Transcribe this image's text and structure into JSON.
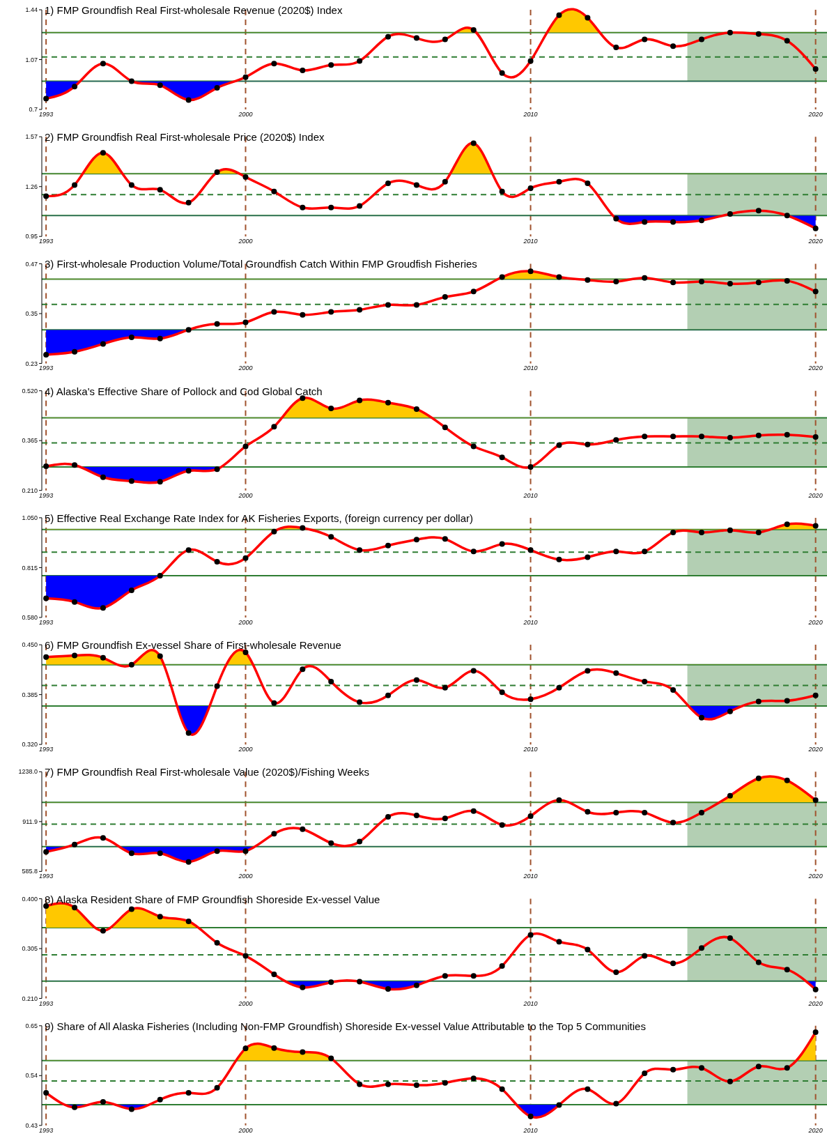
{
  "chart_data": [
    {
      "type": "line",
      "title": "1) FMP Groundfish Real First-wholesale Revenue (2020$) Index",
      "x": [
        1993,
        1994,
        1995,
        1996,
        1997,
        1998,
        1999,
        2000,
        2001,
        2002,
        2003,
        2004,
        2005,
        2006,
        2007,
        2008,
        2009,
        2010,
        2011,
        2012,
        2013,
        2014,
        2015,
        2016,
        2017,
        2018,
        2019,
        2020
      ],
      "xlim": [
        1992.85,
        2020.4
      ],
      "xticks": [
        1993,
        2000,
        2010,
        2020
      ],
      "ylim": [
        0.7,
        1.44
      ],
      "yticks": [
        0.7,
        1.07,
        1.44
      ],
      "grid": "x",
      "marker": "circle",
      "series": [
        {
          "color": "#ff0000",
          "values": [
            0.78,
            0.87,
            1.04,
            0.91,
            0.88,
            0.77,
            0.86,
            0.94,
            1.04,
            0.99,
            1.03,
            1.06,
            1.24,
            1.23,
            1.22,
            1.29,
            0.97,
            1.06,
            1.4,
            1.38,
            1.16,
            1.22,
            1.17,
            1.22,
            1.27,
            1.26,
            1.21,
            1.0
          ]
        }
      ],
      "ref_lines": [
        {
          "axis": "y",
          "value": 1.27,
          "color": "#2e7d32",
          "line_style": "solid"
        },
        {
          "axis": "y",
          "value": 1.09,
          "color": "#2e7d32",
          "line_style": "dashed"
        },
        {
          "axis": "y",
          "value": 0.91,
          "color": "#2e7d32",
          "line_style": "solid"
        }
      ],
      "bands": [
        {
          "axis": "x",
          "from": 2015.5,
          "to": 2020.4,
          "color": "#b3cfb3"
        }
      ]
    },
    {
      "type": "line",
      "title": "2) FMP Groundfish Real First-wholesale Price (2020$) Index",
      "x": [
        1993,
        1994,
        1995,
        1996,
        1997,
        1998,
        1999,
        2000,
        2001,
        2002,
        2003,
        2004,
        2005,
        2006,
        2007,
        2008,
        2009,
        2010,
        2011,
        2012,
        2013,
        2014,
        2015,
        2016,
        2017,
        2018,
        2019,
        2020
      ],
      "xlim": [
        1992.85,
        2020.4
      ],
      "xticks": [
        1993,
        2000,
        2010,
        2020
      ],
      "ylim": [
        0.95,
        1.57
      ],
      "yticks": [
        0.95,
        1.26,
        1.57
      ],
      "grid": "x",
      "marker": "circle",
      "series": [
        {
          "color": "#ff0000",
          "values": [
            1.2,
            1.27,
            1.47,
            1.27,
            1.24,
            1.16,
            1.35,
            1.32,
            1.23,
            1.13,
            1.13,
            1.14,
            1.28,
            1.27,
            1.29,
            1.53,
            1.23,
            1.25,
            1.29,
            1.28,
            1.06,
            1.04,
            1.04,
            1.05,
            1.09,
            1.11,
            1.08,
            1.0
          ]
        }
      ],
      "ref_lines": [
        {
          "axis": "y",
          "value": 1.34,
          "color": "#2e7d32",
          "line_style": "solid"
        },
        {
          "axis": "y",
          "value": 1.21,
          "color": "#2e7d32",
          "line_style": "dashed"
        },
        {
          "axis": "y",
          "value": 1.08,
          "color": "#2e7d32",
          "line_style": "solid"
        }
      ],
      "bands": [
        {
          "axis": "x",
          "from": 2015.5,
          "to": 2020.4,
          "color": "#b3cfb3"
        }
      ]
    },
    {
      "type": "line",
      "title": "3) First-wholesale Production Volume/Total Groundfish Catch Within FMP Groudfish Fisheries",
      "x": [
        1993,
        1994,
        1995,
        1996,
        1997,
        1998,
        1999,
        2000,
        2001,
        2002,
        2003,
        2004,
        2005,
        2006,
        2007,
        2008,
        2009,
        2010,
        2011,
        2012,
        2013,
        2014,
        2015,
        2016,
        2017,
        2018,
        2019,
        2020
      ],
      "xlim": [
        1992.85,
        2020.4
      ],
      "xticks": [
        1993,
        2000,
        2010,
        2020
      ],
      "ylim": [
        0.23,
        0.47
      ],
      "yticks": [
        0.23,
        0.35,
        0.47
      ],
      "grid": "x",
      "marker": "circle",
      "series": [
        {
          "color": "#ff0000",
          "values": [
            0.251,
            0.258,
            0.277,
            0.293,
            0.29,
            0.311,
            0.325,
            0.329,
            0.354,
            0.347,
            0.354,
            0.359,
            0.371,
            0.371,
            0.39,
            0.403,
            0.438,
            0.452,
            0.438,
            0.431,
            0.427,
            0.436,
            0.425,
            0.427,
            0.422,
            0.425,
            0.429,
            0.403
          ]
        }
      ],
      "ref_lines": [
        {
          "axis": "y",
          "value": 0.433,
          "color": "#2e7d32",
          "line_style": "solid"
        },
        {
          "axis": "y",
          "value": 0.372,
          "color": "#2e7d32",
          "line_style": "dashed"
        },
        {
          "axis": "y",
          "value": 0.311,
          "color": "#2e7d32",
          "line_style": "solid"
        }
      ],
      "bands": [
        {
          "axis": "x",
          "from": 2015.5,
          "to": 2020.4,
          "color": "#b3cfb3"
        }
      ]
    },
    {
      "type": "line",
      "title": "4) Alaska's Effective Share of Pollock and Cod Global Catch",
      "x": [
        1993,
        1994,
        1995,
        1996,
        1997,
        1998,
        1999,
        2000,
        2001,
        2002,
        2003,
        2004,
        2005,
        2006,
        2007,
        2008,
        2009,
        2010,
        2011,
        2012,
        2013,
        2014,
        2015,
        2016,
        2017,
        2018,
        2019,
        2020
      ],
      "xlim": [
        1992.85,
        2020.4
      ],
      "xticks": [
        1993,
        2000,
        2010,
        2020
      ],
      "ylim": [
        0.21,
        0.52
      ],
      "yticks": [
        {
          "value": 0.21,
          "label": "0.210"
        },
        {
          "value": 0.365,
          "label": "0.365"
        },
        {
          "value": 0.52,
          "label": "0.520"
        }
      ],
      "grid": "x",
      "marker": "circle",
      "series": [
        {
          "color": "#ff0000",
          "values": [
            0.285,
            0.289,
            0.251,
            0.239,
            0.237,
            0.271,
            0.276,
            0.347,
            0.408,
            0.497,
            0.465,
            0.49,
            0.483,
            0.463,
            0.406,
            0.347,
            0.313,
            0.283,
            0.351,
            0.353,
            0.367,
            0.378,
            0.378,
            0.378,
            0.374,
            0.381,
            0.383,
            0.376
          ]
        }
      ],
      "ref_lines": [
        {
          "axis": "y",
          "value": 0.436,
          "color": "#2e7d32",
          "line_style": "solid"
        },
        {
          "axis": "y",
          "value": 0.358,
          "color": "#2e7d32",
          "line_style": "dashed"
        },
        {
          "axis": "y",
          "value": 0.283,
          "color": "#2e7d32",
          "line_style": "solid"
        }
      ],
      "bands": [
        {
          "axis": "x",
          "from": 2015.5,
          "to": 2020.4,
          "color": "#b3cfb3"
        }
      ]
    },
    {
      "type": "line",
      "title": "5) Effective Real Exchange Rate Index for AK Fisheries Exports, (foreign currency per dollar)",
      "x": [
        1993,
        1994,
        1995,
        1996,
        1997,
        1998,
        1999,
        2000,
        2001,
        2002,
        2003,
        2004,
        2005,
        2006,
        2007,
        2008,
        2009,
        2010,
        2011,
        2012,
        2013,
        2014,
        2015,
        2016,
        2017,
        2018,
        2019,
        2020
      ],
      "xlim": [
        1992.85,
        2020.4
      ],
      "xticks": [
        1993,
        2000,
        2010,
        2020
      ],
      "ylim": [
        0.58,
        1.05
      ],
      "yticks": [
        {
          "value": 0.58,
          "label": "0.580"
        },
        {
          "value": 0.815,
          "label": "0.815"
        },
        {
          "value": 1.05,
          "label": "1.050"
        }
      ],
      "grid": "x",
      "marker": "circle",
      "series": [
        {
          "color": "#ff0000",
          "values": [
            0.67,
            0.653,
            0.625,
            0.708,
            0.777,
            0.898,
            0.843,
            0.86,
            0.985,
            1.002,
            0.96,
            0.898,
            0.919,
            0.947,
            0.95,
            0.891,
            0.926,
            0.898,
            0.853,
            0.864,
            0.891,
            0.891,
            0.981,
            0.981,
            0.991,
            0.981,
            1.019,
            1.012
          ]
        }
      ],
      "ref_lines": [
        {
          "axis": "y",
          "value": 0.995,
          "color": "#2e7d32",
          "line_style": "solid"
        },
        {
          "axis": "y",
          "value": 0.888,
          "color": "#2e7d32",
          "line_style": "dashed"
        },
        {
          "axis": "y",
          "value": 0.777,
          "color": "#2e7d32",
          "line_style": "solid"
        }
      ],
      "bands": [
        {
          "axis": "x",
          "from": 2015.5,
          "to": 2020.4,
          "color": "#b3cfb3"
        }
      ]
    },
    {
      "type": "line",
      "title": "6) FMP Groundfish Ex-vessel Share of First-wholesale Revenue",
      "x": [
        1993,
        1994,
        1995,
        1996,
        1997,
        1998,
        1999,
        2000,
        2001,
        2002,
        2003,
        2004,
        2005,
        2006,
        2007,
        2008,
        2009,
        2010,
        2011,
        2012,
        2013,
        2014,
        2015,
        2016,
        2017,
        2018,
        2019,
        2020
      ],
      "xlim": [
        1992.85,
        2020.4
      ],
      "xticks": [
        1993,
        2000,
        2010,
        2020
      ],
      "ylim": [
        0.32,
        0.45
      ],
      "yticks": [
        {
          "value": 0.32,
          "label": "0.320"
        },
        {
          "value": 0.385,
          "label": "0.385"
        },
        {
          "value": 0.45,
          "label": "0.450"
        }
      ],
      "grid": "x",
      "marker": "circle",
      "series": [
        {
          "color": "#ff0000",
          "values": [
            0.434,
            0.436,
            0.433,
            0.424,
            0.435,
            0.335,
            0.396,
            0.44,
            0.374,
            0.418,
            0.402,
            0.375,
            0.384,
            0.404,
            0.394,
            0.416,
            0.388,
            0.379,
            0.394,
            0.416,
            0.413,
            0.402,
            0.391,
            0.355,
            0.363,
            0.376,
            0.377,
            0.384
          ]
        }
      ],
      "ref_lines": [
        {
          "axis": "y",
          "value": 0.424,
          "color": "#2e7d32",
          "line_style": "solid"
        },
        {
          "axis": "y",
          "value": 0.397,
          "color": "#2e7d32",
          "line_style": "dashed"
        },
        {
          "axis": "y",
          "value": 0.37,
          "color": "#2e7d32",
          "line_style": "solid"
        }
      ],
      "bands": [
        {
          "axis": "x",
          "from": 2015.5,
          "to": 2020.4,
          "color": "#b3cfb3"
        }
      ]
    },
    {
      "type": "line",
      "title": "7) FMP Groundfish Real First-wholesale Value (2020$)/Fishing Weeks",
      "x": [
        1993,
        1994,
        1995,
        1996,
        1997,
        1998,
        1999,
        2000,
        2001,
        2002,
        2003,
        2004,
        2005,
        2006,
        2007,
        2008,
        2009,
        2010,
        2011,
        2012,
        2013,
        2014,
        2015,
        2016,
        2017,
        2018,
        2019,
        2020
      ],
      "xlim": [
        1992.85,
        2020.4
      ],
      "xticks": [
        1993,
        2000,
        2010,
        2020
      ],
      "ylim": [
        585.8,
        1238.0
      ],
      "yticks": [
        585.8,
        911.9,
        {
          "value": 1238.0,
          "label": "1238.0"
        }
      ],
      "grid": "x",
      "marker": "circle",
      "series": [
        {
          "color": "#ff0000",
          "values": [
            714,
            762,
            805,
            705,
            705,
            648,
            719,
            719,
            833,
            862,
            771,
            781,
            943,
            952,
            933,
            981,
            890,
            948,
            1052,
            976,
            971,
            971,
            905,
            971,
            1081,
            1195,
            1181,
            1052
          ]
        }
      ],
      "ref_lines": [
        {
          "axis": "y",
          "value": 1038,
          "color": "#2e7d32",
          "line_style": "solid"
        },
        {
          "axis": "y",
          "value": 895,
          "color": "#2e7d32",
          "line_style": "dashed"
        },
        {
          "axis": "y",
          "value": 748,
          "color": "#2e7d32",
          "line_style": "solid"
        }
      ],
      "bands": [
        {
          "axis": "x",
          "from": 2015.5,
          "to": 2020.4,
          "color": "#b3cfb3"
        }
      ]
    },
    {
      "type": "line",
      "title": "8) Alaska Resident Share of FMP Groundfish Shoreside Ex-vessel Value",
      "x": [
        1993,
        1994,
        1995,
        1996,
        1997,
        1998,
        1999,
        2000,
        2001,
        2002,
        2003,
        2004,
        2005,
        2006,
        2007,
        2008,
        2009,
        2010,
        2011,
        2012,
        2013,
        2014,
        2015,
        2016,
        2017,
        2018,
        2019,
        2020
      ],
      "xlim": [
        1992.85,
        2020.4
      ],
      "xticks": [
        1993,
        2000,
        2010,
        2020
      ],
      "ylim": [
        0.21,
        0.4
      ],
      "yticks": [
        {
          "value": 0.21,
          "label": "0.210"
        },
        {
          "value": 0.305,
          "label": "0.305"
        },
        {
          "value": 0.4,
          "label": "0.400"
        }
      ],
      "grid": "x",
      "marker": "circle",
      "series": [
        {
          "color": "#ff0000",
          "values": [
            0.386,
            0.383,
            0.339,
            0.38,
            0.366,
            0.357,
            0.316,
            0.291,
            0.256,
            0.231,
            0.241,
            0.242,
            0.228,
            0.235,
            0.253,
            0.253,
            0.272,
            0.331,
            0.318,
            0.303,
            0.26,
            0.291,
            0.277,
            0.306,
            0.325,
            0.279,
            0.265,
            0.227
          ]
        }
      ],
      "ref_lines": [
        {
          "axis": "y",
          "value": 0.345,
          "color": "#2e7d32",
          "line_style": "solid"
        },
        {
          "axis": "y",
          "value": 0.293,
          "color": "#2e7d32",
          "line_style": "dashed"
        },
        {
          "axis": "y",
          "value": 0.243,
          "color": "#2e7d32",
          "line_style": "solid"
        }
      ],
      "bands": [
        {
          "axis": "x",
          "from": 2015.5,
          "to": 2020.4,
          "color": "#b3cfb3"
        }
      ]
    },
    {
      "type": "line",
      "title": "9) Share of All Alaska Fisheries (Including Non-FMP Groundfish) Shoreside Ex-vessel Value Attributable to the Top 5 Communities",
      "x": [
        1993,
        1994,
        1995,
        1996,
        1997,
        1998,
        1999,
        2000,
        2001,
        2002,
        2003,
        2004,
        2005,
        2006,
        2007,
        2008,
        2009,
        2010,
        2011,
        2012,
        2013,
        2014,
        2015,
        2016,
        2017,
        2018,
        2019,
        2020
      ],
      "xlim": [
        1992.85,
        2020.4
      ],
      "xticks": [
        1993,
        2000,
        2010,
        2020
      ],
      "ylim": [
        0.43,
        0.65
      ],
      "yticks": [
        0.43,
        0.54,
        0.65
      ],
      "grid": "x",
      "marker": "circle",
      "series": [
        {
          "color": "#ff0000",
          "values": [
            0.502,
            0.47,
            0.482,
            0.466,
            0.487,
            0.502,
            0.513,
            0.6,
            0.601,
            0.592,
            0.578,
            0.521,
            0.521,
            0.519,
            0.524,
            0.534,
            0.51,
            0.45,
            0.475,
            0.51,
            0.478,
            0.545,
            0.553,
            0.557,
            0.527,
            0.56,
            0.557,
            0.636
          ]
        }
      ],
      "ref_lines": [
        {
          "axis": "y",
          "value": 0.573,
          "color": "#2e7d32",
          "line_style": "solid"
        },
        {
          "axis": "y",
          "value": 0.528,
          "color": "#2e7d32",
          "line_style": "dashed"
        },
        {
          "axis": "y",
          "value": 0.476,
          "color": "#2e7d32",
          "line_style": "solid"
        }
      ],
      "bands": [
        {
          "axis": "x",
          "from": 2015.5,
          "to": 2020.4,
          "color": "#b3cfb3"
        }
      ]
    }
  ]
}
